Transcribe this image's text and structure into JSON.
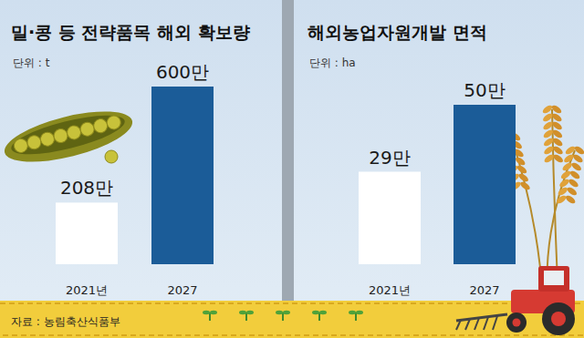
{
  "chart_data": [
    {
      "type": "bar",
      "title": "밀·콩 등 전략품목 해외 확보량",
      "subtitle": "단위 : t",
      "categories": [
        "2021년",
        "2027"
      ],
      "values": [
        2080000,
        6000000
      ],
      "value_labels": [
        "208만",
        "600만"
      ],
      "colors": [
        "#ffffff",
        "#1b5c98"
      ],
      "ylim": [
        0,
        6000000
      ],
      "data_labels": true,
      "tick_labels": "x",
      "grid": false
    },
    {
      "type": "bar",
      "title": "해외농업자원개발 면적",
      "subtitle": "단위 : ha",
      "categories": [
        "2021년",
        "2027"
      ],
      "values": [
        290000,
        500000
      ],
      "value_labels": [
        "29만",
        "50만"
      ],
      "colors": [
        "#ffffff",
        "#1b5c98"
      ],
      "ylim": [
        0,
        500000
      ],
      "data_labels": true,
      "tick_labels": "x",
      "grid": false
    }
  ],
  "source": "자료 : 농림축산식품부"
}
